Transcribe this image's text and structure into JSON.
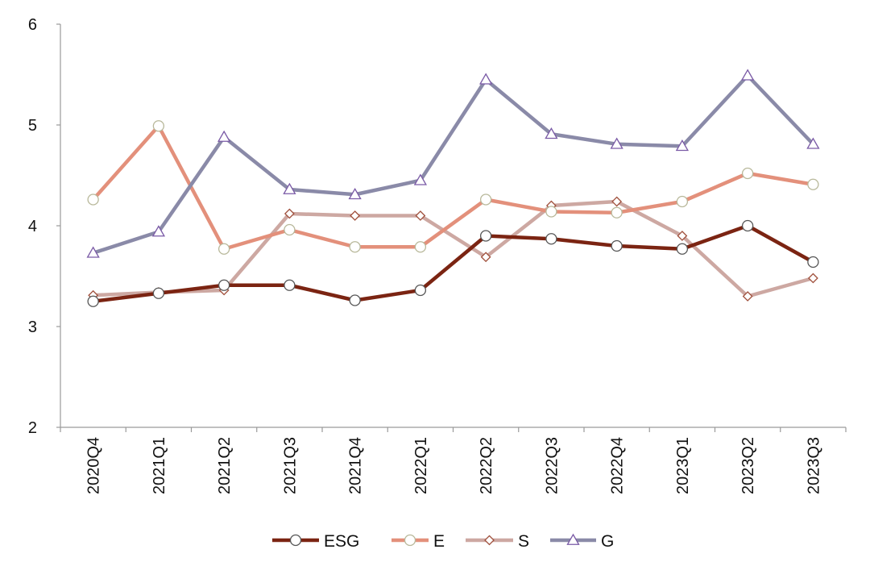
{
  "chart_data": {
    "type": "line",
    "title": "",
    "xlabel": "",
    "ylabel": "",
    "categories": [
      "2020Q4",
      "2021Q1",
      "2021Q2",
      "2021Q3",
      "2021Q4",
      "2022Q1",
      "2022Q2",
      "2022Q3",
      "2022Q4",
      "2023Q1",
      "2023Q2",
      "2023Q3"
    ],
    "ylim": [
      2,
      6
    ],
    "yticks": [
      "2",
      "3",
      "4",
      "5",
      "6"
    ],
    "grid": false,
    "legend_position": "bottom",
    "series": [
      {
        "name": "ESG",
        "color": "#7b2412",
        "marker": "circle",
        "values": [
          3.25,
          3.33,
          3.41,
          3.41,
          3.26,
          3.36,
          3.9,
          3.87,
          3.8,
          3.77,
          4.0,
          3.64
        ]
      },
      {
        "name": "E",
        "color": "#e3907b",
        "marker": "circle",
        "values": [
          4.26,
          4.99,
          3.77,
          3.96,
          3.79,
          3.79,
          4.26,
          4.14,
          4.13,
          4.24,
          4.52,
          4.41
        ]
      },
      {
        "name": "S",
        "color": "#cda8a2",
        "marker": "diamond",
        "values": [
          3.31,
          3.34,
          3.36,
          4.12,
          4.1,
          4.1,
          3.69,
          4.2,
          4.24,
          3.9,
          3.3,
          3.48
        ]
      },
      {
        "name": "G",
        "color": "#8a8aa8",
        "marker": "triangle",
        "values": [
          3.73,
          3.94,
          4.88,
          4.36,
          4.31,
          4.45,
          5.45,
          4.91,
          4.81,
          4.79,
          5.49,
          4.81
        ]
      }
    ]
  }
}
